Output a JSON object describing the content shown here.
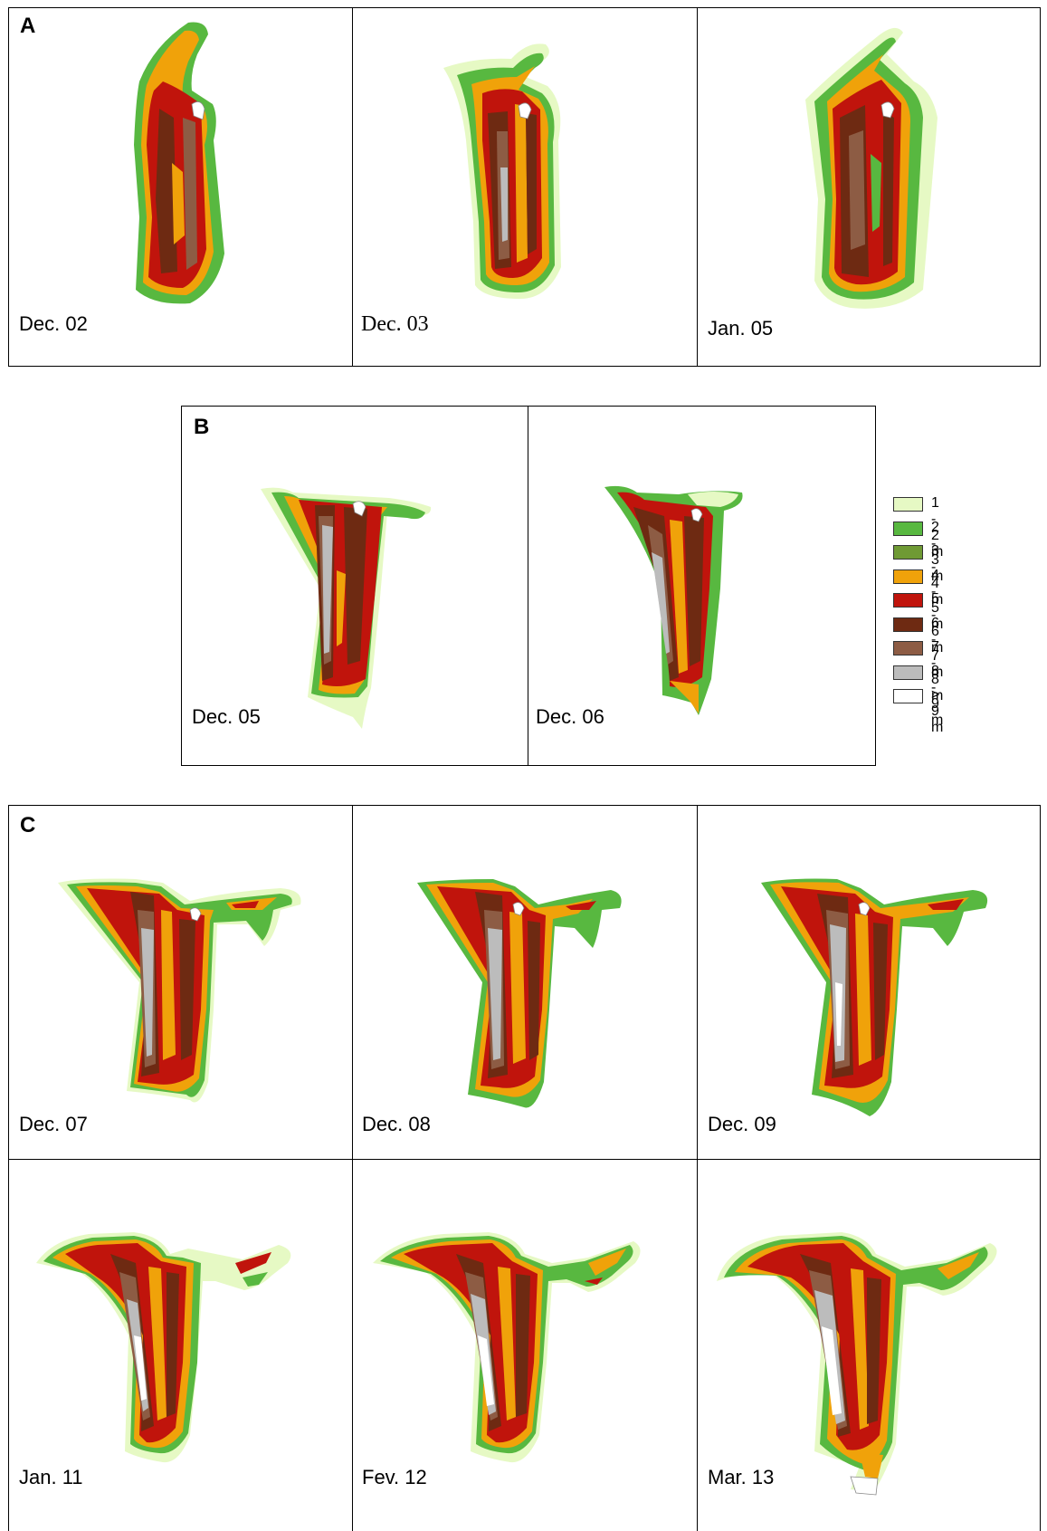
{
  "sections": [
    {
      "label": "A",
      "dates": [
        "Dec. 02",
        "Dec. 03",
        "Jan. 05"
      ]
    },
    {
      "label": "B",
      "dates": [
        "Dec. 05",
        "Dec. 06"
      ]
    },
    {
      "label": "C",
      "dates": [
        "Dec. 07",
        "Dec. 08",
        "Dec. 09",
        "Jan. 11",
        "Fev. 12",
        "Mar. 13"
      ]
    }
  ],
  "legend": [
    {
      "label": "1 - 2 m",
      "color": "#e6f9c4"
    },
    {
      "label": "2 - 3 m",
      "color": "#58b840"
    },
    {
      "label": "3 - 4 m",
      "color": "#6f9a34"
    },
    {
      "label": "4 - 5 m",
      "color": "#f0a20a"
    },
    {
      "label": "5 - 6 m",
      "color": "#c0140c"
    },
    {
      "label": "6 - 7 m",
      "color": "#6e2a12"
    },
    {
      "label": "7 - 8 m",
      "color": "#8d5c44"
    },
    {
      "label": "8 - 9 m",
      "color": "#bcbcbc"
    },
    {
      "label": "> 9 m",
      "color": "#ffffff"
    }
  ]
}
